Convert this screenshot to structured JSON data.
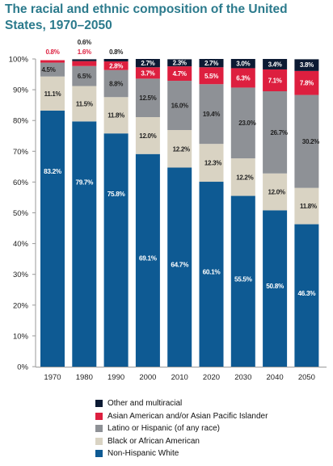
{
  "chart_data": {
    "type": "bar",
    "stacked": true,
    "title": "The racial and ethnic composition of the United States, 1970–2050",
    "categories": [
      "1970",
      "1980",
      "1990",
      "2000",
      "2010",
      "2020",
      "2030",
      "2040",
      "2050"
    ],
    "ylim": [
      0,
      100
    ],
    "yticks": [
      "0%",
      "10%",
      "20%",
      "30%",
      "40%",
      "50%",
      "60%",
      "70%",
      "80%",
      "90%",
      "100%"
    ],
    "grid": false,
    "legend_position": "bottom",
    "series": [
      {
        "name": "Non-Hispanic White",
        "color": "#0e5a93",
        "label_color": "#ffffff",
        "values": [
          83.2,
          79.7,
          75.8,
          69.1,
          64.7,
          60.1,
          55.5,
          50.8,
          46.3
        ],
        "labels": [
          "83.2%",
          "79.7%",
          "75.8%",
          "69.1%",
          "64.7%",
          "60.1%",
          "55.5%",
          "50.8%",
          "46.3%"
        ]
      },
      {
        "name": "Black or African American",
        "color": "#d9d3c3",
        "label_color": "#222222",
        "values": [
          11.1,
          11.5,
          11.8,
          12.0,
          12.2,
          12.3,
          12.2,
          12.0,
          11.8
        ],
        "labels": [
          "11.1%",
          "11.5%",
          "11.8%",
          "12.0%",
          "12.2%",
          "12.3%",
          "12.2%",
          "12.0%",
          "11.8%"
        ]
      },
      {
        "name": "Latino or Hispanic (of any race)",
        "color": "#8e9196",
        "label_color": "#222222",
        "values": [
          4.5,
          6.5,
          8.8,
          12.5,
          16.0,
          19.4,
          23.0,
          26.7,
          30.2
        ],
        "labels": [
          "4.5%",
          "6.5%",
          "8.8%",
          "12.5%",
          "16.0%",
          "19.4%",
          "23.0%",
          "26.7%",
          "30.2%"
        ]
      },
      {
        "name": "Asian American and/or Asian Pacific Islander",
        "color": "#dd1f3f",
        "label_color": "#ffffff",
        "values": [
          0.8,
          1.6,
          2.8,
          3.7,
          4.7,
          5.5,
          6.3,
          7.1,
          7.8
        ],
        "labels": [
          "0.8%",
          "1.6%",
          "2.8%",
          "3.7%",
          "4.7%",
          "5.5%",
          "6.3%",
          "7.1%",
          "7.8%"
        ]
      },
      {
        "name": "Other and multiracial",
        "color": "#0c1a33",
        "label_color": "#ffffff",
        "values": [
          0.0,
          0.6,
          0.8,
          2.7,
          2.3,
          2.7,
          3.0,
          3.4,
          3.8
        ],
        "labels": [
          "",
          "0.6%",
          "0.8%",
          "2.7%",
          "2.3%",
          "2.7%",
          "3.0%",
          "3.4%",
          "3.8%"
        ]
      }
    ]
  }
}
